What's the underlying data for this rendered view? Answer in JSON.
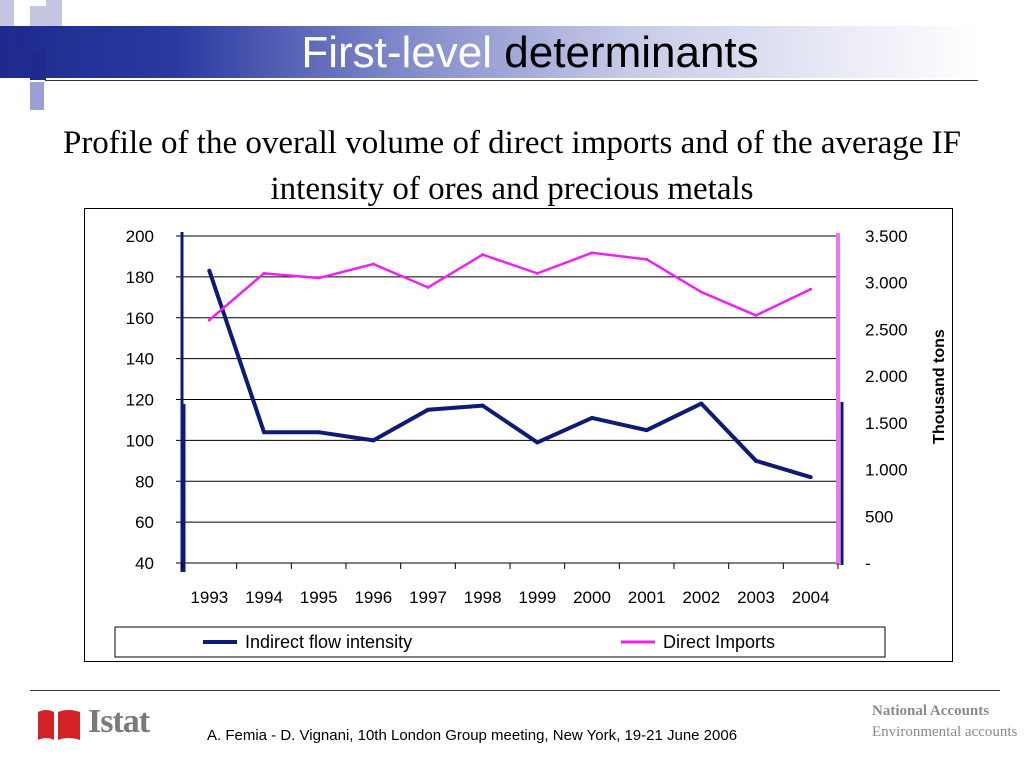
{
  "slide": {
    "title_part1": "First-level",
    "title_part2": "determinants",
    "subtitle": "Profile of the overall volume of direct imports and of the average IF intensity of ores and precious metals"
  },
  "footer": {
    "logo_text": "Istat",
    "citation": "A. Femia - D. Vignani, 10th London Group meeting, New York, 19-21 June 2006",
    "section_title": "National Accounts",
    "section_subtitle": "Environmental accounts"
  },
  "colors": {
    "header_blue": "#1e2a8c",
    "series_intensity": "#0d1a78",
    "series_imports": "#ee22ee",
    "logo_red": "#d42027"
  },
  "chart_data": {
    "type": "line",
    "categories": [
      "1993",
      "1994",
      "1995",
      "1996",
      "1997",
      "1998",
      "1999",
      "2000",
      "2001",
      "2002",
      "2003",
      "2004"
    ],
    "series": [
      {
        "name": "Indirect flow intensity",
        "axis": "left",
        "values": [
          183,
          104,
          104,
          100,
          115,
          117,
          99,
          111,
          105,
          118,
          90,
          82
        ]
      },
      {
        "name": "Direct Imports",
        "axis": "right",
        "values": [
          2600,
          3100,
          3050,
          3200,
          2950,
          3300,
          3100,
          3320,
          3250,
          2900,
          2650,
          2930
        ]
      }
    ],
    "y_left": {
      "min": 40,
      "max": 200,
      "step": 20,
      "ticks": [
        "200",
        "180",
        "160",
        "140",
        "120",
        "100",
        "80",
        "60",
        "40"
      ]
    },
    "y_right": {
      "min": 0,
      "max": 3500,
      "label": "Thousand tons",
      "ticks": [
        "3.500",
        "3.000",
        "2.500",
        "2.000",
        "1.500",
        "1.000",
        "500",
        "-"
      ]
    },
    "grid": true,
    "legend": "bottom"
  }
}
